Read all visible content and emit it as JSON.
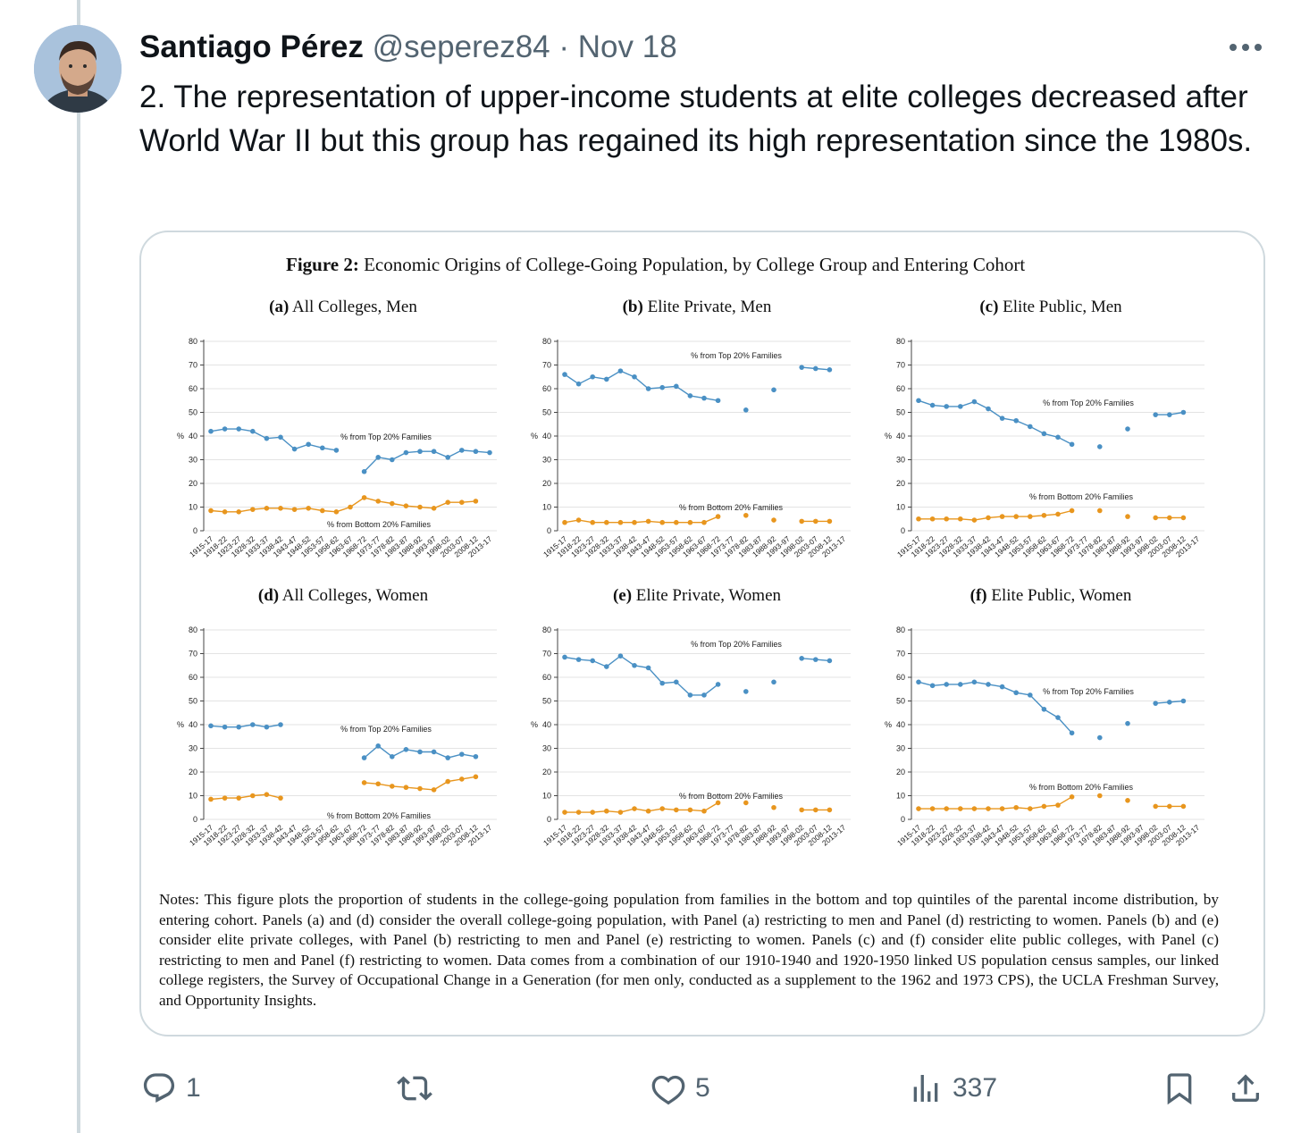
{
  "tweet": {
    "author_name": "Santiago Pérez",
    "handle": "@seperez84",
    "separator": "·",
    "date": "Nov 18",
    "text": "2. The representation of upper-income students at elite colleges decreased after World War II but this group has regained its high representation since the 1980s."
  },
  "actions": {
    "reply_count": "1",
    "retweet_count": "",
    "like_count": "5",
    "views_count": "337"
  },
  "figure": {
    "title_bold": "Figure 2:",
    "title_rest": " Economic Origins of College-Going Population, by College Group and Entering Cohort",
    "notes": "Notes: This figure plots the proportion of students in the college-going population from families in the bottom and top quintiles of the parental income distribution, by entering cohort. Panels (a) and (d) consider the overall college-going population, with Panel (a) restricting to men and Panel (d) restricting to women. Panels (b) and (e) consider elite private colleges, with Panel (b) restricting to men and Panel (e) restricting to women. Panels (c) and (f) consider elite public colleges, with Panel (c) restricting to men and Panel (f) restricting to women. Data comes from a combination of our 1910-1940 and 1920-1950 linked US population census samples, our linked college registers, the Survey of Occupational Change in a Generation (for men only, conducted as a supplement to the 1962 and 1973 CPS), the UCLA Freshman Survey, and Opportunity Insights."
  },
  "colors": {
    "top": "#4a90c4",
    "bottom": "#e8961e",
    "grid": "#e3e3e3",
    "axis": "#444444"
  },
  "chart_data": [
    {
      "type": "line",
      "panel_label": "(a)",
      "title": " All Colleges, Men",
      "ylabel": "%",
      "ylim": [
        0,
        80
      ],
      "yticks": [
        0,
        10,
        20,
        30,
        40,
        50,
        60,
        70,
        80
      ],
      "categories": [
        "1915-17",
        "1918-22",
        "1923-27",
        "1928-32",
        "1933-37",
        "1938-42",
        "1943-47",
        "1948-52",
        "1953-57",
        "1958-62",
        "1963-67",
        "1968-72",
        "1973-77",
        "1978-82",
        "1983-87",
        "1988-92",
        "1993-97",
        "1998-02",
        "2003-07",
        "2008-12",
        "2013-17"
      ],
      "series": [
        {
          "name": "% from Top 20% Families",
          "values": [
            42,
            43,
            43,
            42,
            39,
            39.5,
            34.5,
            36.5,
            35,
            34,
            null,
            25,
            31,
            30,
            33,
            33.5,
            33.5,
            31,
            34,
            33.5,
            33
          ]
        },
        {
          "name": "% from Bottom 20% Families",
          "values": [
            8.5,
            8,
            8,
            9,
            9.5,
            9.5,
            9,
            9.5,
            8.5,
            8,
            10,
            14,
            12.5,
            11.5,
            10.5,
            10,
            9.5,
            12,
            12,
            12.5,
            null
          ]
        }
      ]
    },
    {
      "type": "line",
      "panel_label": "(b)",
      "title": " Elite Private, Men",
      "ylabel": "%",
      "ylim": [
        0,
        80
      ],
      "yticks": [
        0,
        10,
        20,
        30,
        40,
        50,
        60,
        70,
        80
      ],
      "categories": [
        "1915-17",
        "1918-22",
        "1923-27",
        "1928-32",
        "1933-37",
        "1938-42",
        "1943-47",
        "1948-52",
        "1953-57",
        "1958-62",
        "1963-67",
        "1968-72",
        "1973-77",
        "1978-82",
        "1983-87",
        "1988-92",
        "1993-97",
        "1998-02",
        "2003-07",
        "2008-12",
        "2013-17"
      ],
      "series": [
        {
          "name": "% from Top 20% Families",
          "values": [
            66,
            62,
            65,
            64,
            67.5,
            65,
            60,
            60.5,
            61,
            57,
            56,
            55,
            null,
            51,
            null,
            59.5,
            null,
            69,
            68.5,
            68,
            null
          ]
        },
        {
          "name": "% from Bottom 20% Families",
          "values": [
            3.5,
            4.5,
            3.5,
            3.5,
            3.5,
            3.5,
            4,
            3.5,
            3.5,
            3.5,
            3.5,
            6,
            null,
            6.5,
            null,
            4.5,
            null,
            4,
            4,
            4,
            null
          ]
        }
      ]
    },
    {
      "type": "line",
      "panel_label": "(c)",
      "title": " Elite Public, Men",
      "ylabel": "%",
      "ylim": [
        0,
        80
      ],
      "yticks": [
        0,
        10,
        20,
        30,
        40,
        50,
        60,
        70,
        80
      ],
      "categories": [
        "1915-17",
        "1918-22",
        "1923-27",
        "1928-32",
        "1933-37",
        "1938-42",
        "1943-47",
        "1948-52",
        "1953-57",
        "1958-62",
        "1963-67",
        "1968-72",
        "1973-77",
        "1978-82",
        "1983-87",
        "1988-92",
        "1993-97",
        "1998-02",
        "2003-07",
        "2008-12",
        "2013-17"
      ],
      "series": [
        {
          "name": "% from Top 20% Families",
          "values": [
            55,
            53,
            52.5,
            52.5,
            54.5,
            51.5,
            47.5,
            46.5,
            44,
            41,
            39.5,
            36.5,
            null,
            35.5,
            null,
            43,
            null,
            49,
            49,
            50,
            null
          ]
        },
        {
          "name": "% from Bottom 20% Families",
          "values": [
            5,
            5,
            5,
            5,
            4.5,
            5.5,
            6,
            6,
            6,
            6.5,
            7,
            8.5,
            null,
            8.5,
            null,
            6,
            null,
            5.5,
            5.5,
            5.5,
            null
          ]
        }
      ]
    },
    {
      "type": "line",
      "panel_label": "(d)",
      "title": " All Colleges, Women",
      "ylabel": "%",
      "ylim": [
        0,
        80
      ],
      "yticks": [
        0,
        10,
        20,
        30,
        40,
        50,
        60,
        70,
        80
      ],
      "categories": [
        "1915-17",
        "1918-22",
        "1923-27",
        "1928-32",
        "1933-37",
        "1938-42",
        "1943-47",
        "1948-52",
        "1953-57",
        "1958-62",
        "1963-67",
        "1968-72",
        "1973-77",
        "1978-82",
        "1983-87",
        "1988-92",
        "1993-97",
        "1998-02",
        "2003-07",
        "2008-12",
        "2013-17"
      ],
      "series": [
        {
          "name": "% from Top 20% Families",
          "values": [
            39.5,
            39,
            39,
            40,
            39,
            40,
            null,
            null,
            null,
            null,
            null,
            26,
            31,
            26.5,
            29.5,
            28.5,
            28.5,
            26,
            27.5,
            26.5,
            null
          ]
        },
        {
          "name": "% from Bottom 20% Families",
          "values": [
            8.5,
            9,
            9,
            10,
            10.5,
            9,
            null,
            null,
            null,
            null,
            null,
            15.5,
            15,
            14,
            13.5,
            13,
            12.5,
            16,
            17,
            18,
            null
          ]
        }
      ]
    },
    {
      "type": "line",
      "panel_label": "(e)",
      "title": " Elite Private, Women",
      "ylabel": "%",
      "ylim": [
        0,
        80
      ],
      "yticks": [
        0,
        10,
        20,
        30,
        40,
        50,
        60,
        70,
        80
      ],
      "categories": [
        "1915-17",
        "1918-22",
        "1923-27",
        "1928-32",
        "1933-37",
        "1938-42",
        "1943-47",
        "1948-52",
        "1953-57",
        "1958-62",
        "1963-67",
        "1968-72",
        "1973-77",
        "1978-82",
        "1983-87",
        "1988-92",
        "1993-97",
        "1998-02",
        "2003-07",
        "2008-12",
        "2013-17"
      ],
      "series": [
        {
          "name": "% from Top 20% Families",
          "values": [
            68.5,
            67.5,
            67,
            64.5,
            69,
            65,
            64,
            57.5,
            58,
            52.5,
            52.5,
            57,
            null,
            54,
            null,
            58,
            null,
            68,
            67.5,
            67,
            null
          ]
        },
        {
          "name": "% from Bottom 20% Families",
          "values": [
            3,
            3,
            3,
            3.5,
            3,
            4.5,
            3.5,
            4.5,
            4,
            4,
            3.5,
            7,
            null,
            7,
            null,
            5,
            null,
            4,
            4,
            4,
            null
          ]
        }
      ]
    },
    {
      "type": "line",
      "panel_label": "(f)",
      "title": " Elite Public, Women",
      "ylabel": "%",
      "ylim": [
        0,
        80
      ],
      "yticks": [
        0,
        10,
        20,
        30,
        40,
        50,
        60,
        70,
        80
      ],
      "categories": [
        "1915-17",
        "1918-22",
        "1923-27",
        "1928-32",
        "1933-37",
        "1938-42",
        "1943-47",
        "1948-52",
        "1953-57",
        "1958-62",
        "1963-67",
        "1968-72",
        "1973-77",
        "1978-82",
        "1983-87",
        "1988-92",
        "1993-97",
        "1998-02",
        "2003-07",
        "2008-12",
        "2013-17"
      ],
      "series": [
        {
          "name": "% from Top 20% Families",
          "values": [
            58,
            56.5,
            57,
            57,
            58,
            57,
            56,
            53.5,
            52.5,
            46.5,
            43,
            36.5,
            null,
            34.5,
            null,
            40.5,
            null,
            49,
            49.5,
            50,
            null
          ]
        },
        {
          "name": "% from Bottom 20% Families",
          "values": [
            4.5,
            4.5,
            4.5,
            4.5,
            4.5,
            4.5,
            4.5,
            5,
            4.5,
            5.5,
            6,
            9.5,
            null,
            10,
            null,
            8,
            null,
            5.5,
            5.5,
            5.5,
            null
          ]
        }
      ]
    }
  ]
}
